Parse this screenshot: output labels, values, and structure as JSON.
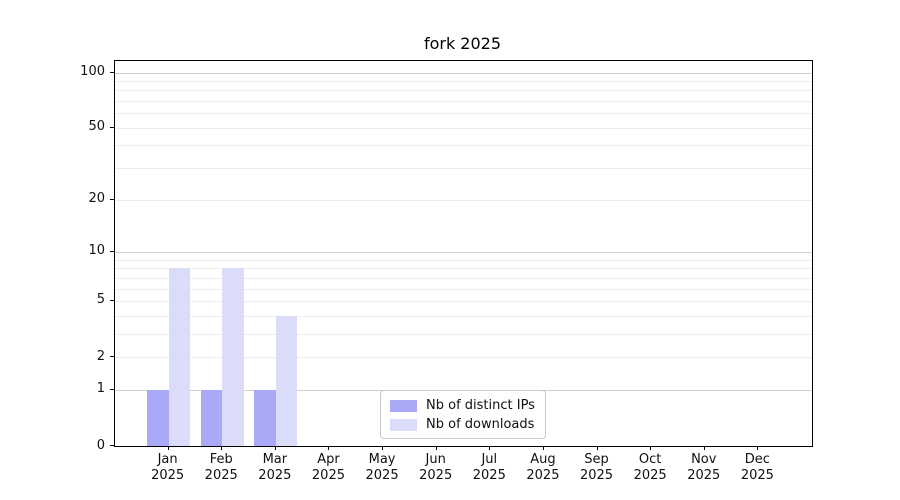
{
  "chart_data": {
    "type": "bar",
    "title": "fork 2025",
    "x_categories": [
      {
        "month": "Jan",
        "year": "2025"
      },
      {
        "month": "Feb",
        "year": "2025"
      },
      {
        "month": "Mar",
        "year": "2025"
      },
      {
        "month": "Apr",
        "year": "2025"
      },
      {
        "month": "May",
        "year": "2025"
      },
      {
        "month": "Jun",
        "year": "2025"
      },
      {
        "month": "Jul",
        "year": "2025"
      },
      {
        "month": "Aug",
        "year": "2025"
      },
      {
        "month": "Sep",
        "year": "2025"
      },
      {
        "month": "Oct",
        "year": "2025"
      },
      {
        "month": "Nov",
        "year": "2025"
      },
      {
        "month": "Dec",
        "year": "2025"
      }
    ],
    "series": [
      {
        "name": "Nb of distinct IPs",
        "color": "#a9a9f7",
        "values": [
          1,
          1,
          1,
          0,
          0,
          0,
          0,
          0,
          0,
          0,
          0,
          0
        ]
      },
      {
        "name": "Nb of downloads",
        "color": "#dbdbfa",
        "values": [
          8,
          8,
          4,
          0,
          0,
          0,
          0,
          0,
          0,
          0,
          0,
          0
        ]
      }
    ],
    "y_axis": {
      "scale": "log10(1+y)",
      "tick_values": [
        0,
        1,
        2,
        5,
        10,
        20,
        50,
        100
      ],
      "ylim": [
        0,
        115
      ],
      "major_grid_values": [
        1,
        10,
        100
      ],
      "minor_grid_values": [
        2,
        3,
        4,
        5,
        6,
        7,
        8,
        9,
        20,
        30,
        40,
        50,
        60,
        70,
        80,
        90
      ]
    },
    "grid": {
      "on": true,
      "major_color": "#cfcfcf",
      "minor_color": "#ededed"
    },
    "legend": {
      "position": "lower-center"
    }
  }
}
